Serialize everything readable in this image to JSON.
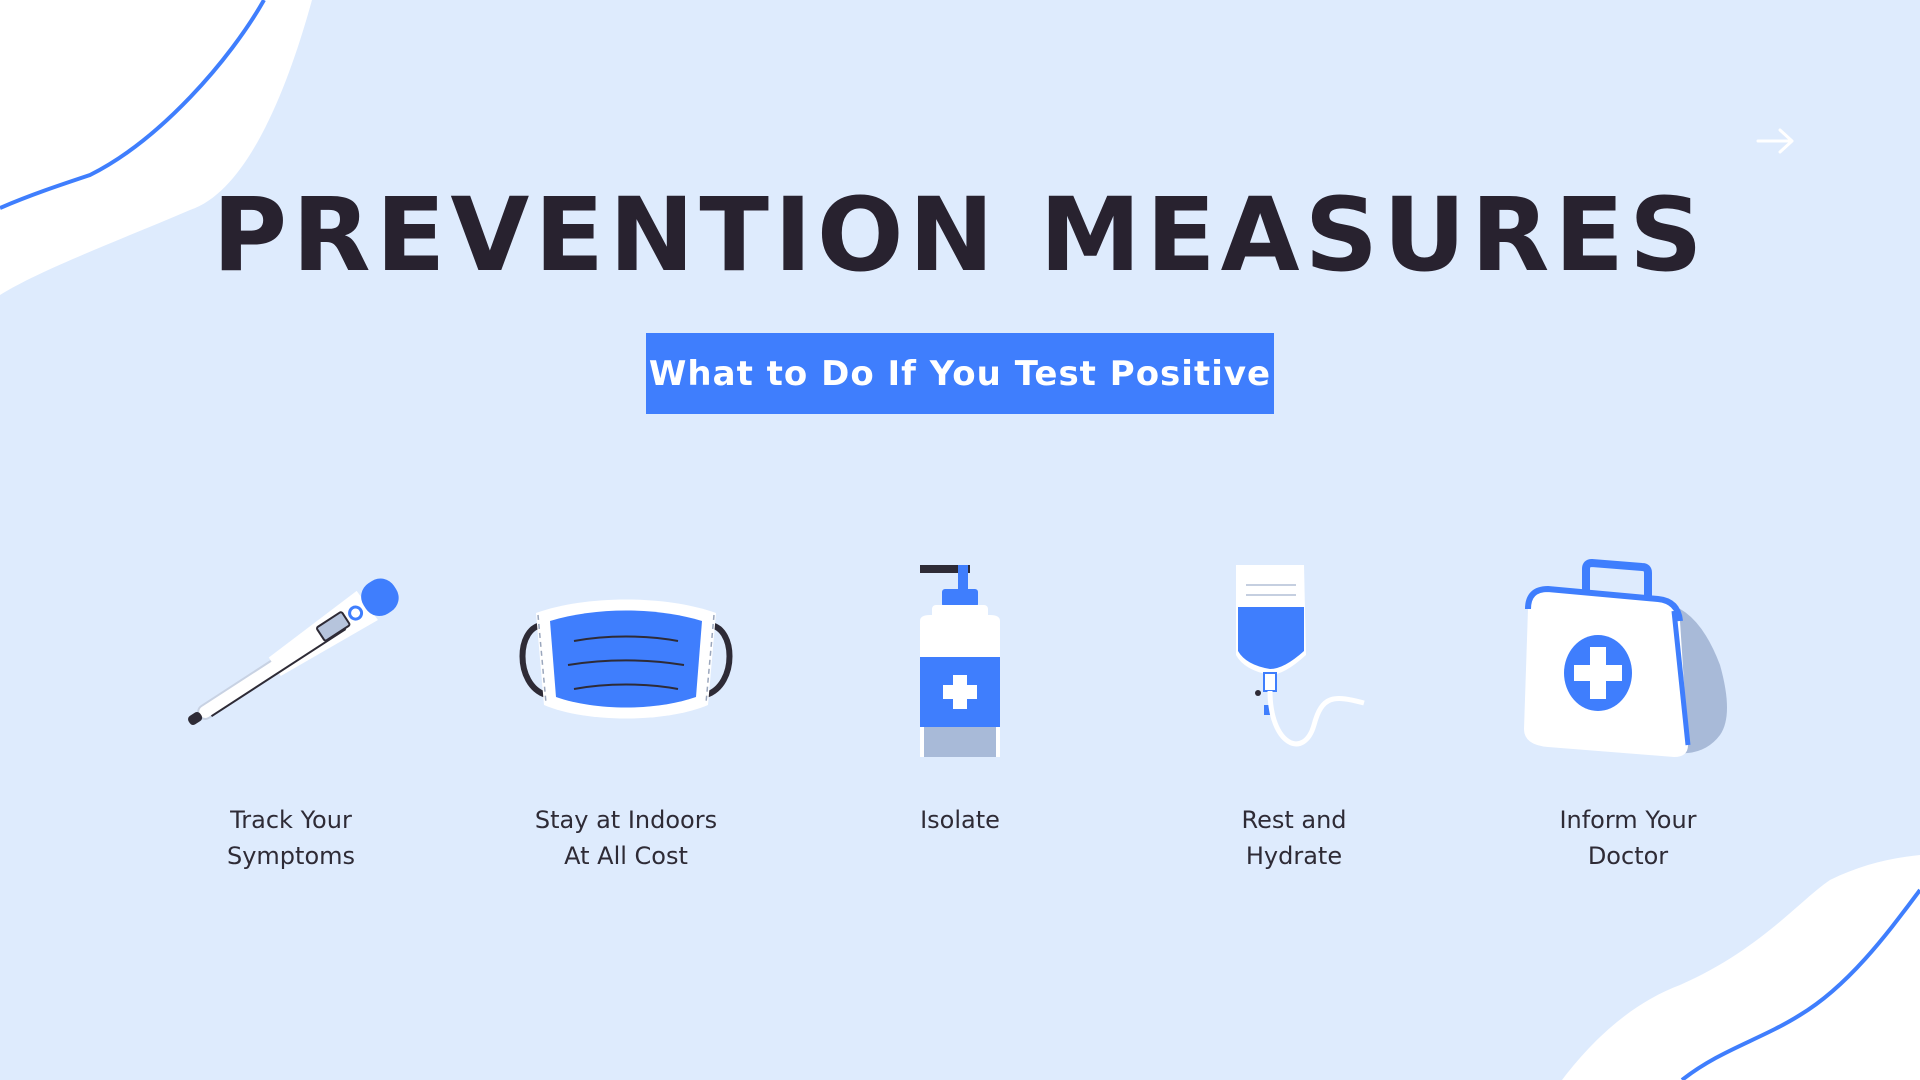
{
  "slide": {
    "title": "PREVENTION MEASURES",
    "subtitle": "What to Do If You Test Positive"
  },
  "items": [
    {
      "label": "Track Your\nSymptoms",
      "icon": "thermometer-icon"
    },
    {
      "label": "Stay at Indoors\nAt All Cost",
      "icon": "face-mask-icon"
    },
    {
      "label": "Isolate",
      "icon": "sanitizer-bottle-icon"
    },
    {
      "label": "Rest and\nHydrate",
      "icon": "iv-drip-icon"
    },
    {
      "label": "Inform Your\nDoctor",
      "icon": "first-aid-kit-icon"
    }
  ],
  "colors": {
    "background": "#deebfd",
    "accent": "#3f7efd",
    "title": "#28222f",
    "label": "#2e2b36"
  }
}
